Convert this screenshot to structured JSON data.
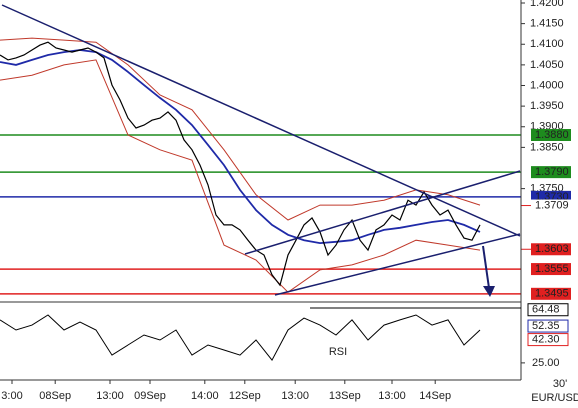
{
  "chart_data": {
    "type": "line",
    "symbol": "EUR/USD",
    "timeframe": "30'",
    "xlim": [
      0,
      65
    ],
    "xticks": [
      {
        "value": 1.5,
        "label": "3:00"
      },
      {
        "value": 6.9,
        "label": "08Sep"
      },
      {
        "value": 13.75,
        "label": "13:00"
      },
      {
        "value": 18.75,
        "label": "09Sep"
      },
      {
        "value": 25.6,
        "label": "14:00"
      },
      {
        "value": 30.6,
        "label": "12Sep"
      },
      {
        "value": 36.9,
        "label": "13:00"
      },
      {
        "value": 43.1,
        "label": "13Sep"
      },
      {
        "value": 49,
        "label": "13:00"
      },
      {
        "value": 54.4,
        "label": "14Sep"
      }
    ],
    "ylim": [
      1.348,
      1.42
    ],
    "yticks": [
      {
        "value": 1.42,
        "label": "1.4200"
      },
      {
        "value": 1.415,
        "label": "1.4150"
      },
      {
        "value": 1.41,
        "label": "1.4100"
      },
      {
        "value": 1.405,
        "label": "1.4050"
      },
      {
        "value": 1.4,
        "label": "1.4000"
      },
      {
        "value": 1.395,
        "label": "1.3950"
      },
      {
        "value": 1.39,
        "label": "1.3900"
      },
      {
        "value": 1.385,
        "label": "1.3850"
      },
      {
        "value": 1.375,
        "label": "1.3750"
      }
    ],
    "levels": [
      {
        "value": 1.388,
        "label": "1.3880",
        "color": "#1e8c1e",
        "line": true
      },
      {
        "value": 1.379,
        "label": "1.3790",
        "color": "#1e8c1e",
        "line": true
      },
      {
        "value": 1.373,
        "label": "1.3730",
        "color": "#1f2aa8",
        "line": true
      },
      {
        "value": 1.3709,
        "label": "1.3709",
        "color": "#e02020",
        "line": false
      },
      {
        "value": 1.3603,
        "label": "1.3603",
        "color": "#e02020",
        "line": false
      },
      {
        "value": 1.3555,
        "label": "1.3555",
        "color": "#e02020",
        "line": true
      },
      {
        "value": 1.3495,
        "label": "1.3495",
        "color": "#e02020",
        "line": true
      }
    ],
    "price": {
      "color": "#000000",
      "x": [
        0,
        1,
        2,
        3,
        4,
        5,
        6,
        7,
        8,
        9,
        10,
        11,
        12,
        13,
        14,
        15,
        16,
        17,
        18,
        19,
        20,
        21,
        22,
        23,
        24,
        25,
        26,
        27,
        28,
        29,
        30,
        31,
        32,
        33,
        34,
        35,
        36,
        37,
        38,
        39,
        40,
        41,
        42,
        43,
        44,
        45,
        46,
        47,
        48,
        49,
        50,
        51,
        52,
        53,
        54,
        55,
        56,
        57,
        58,
        59,
        60
      ],
      "values": [
        1.4074,
        1.4062,
        1.4067,
        1.4074,
        1.4086,
        1.4098,
        1.4105,
        1.4091,
        1.4086,
        1.4081,
        1.4086,
        1.4091,
        1.4081,
        1.4067,
        1.4001,
        1.3965,
        1.3921,
        1.3897,
        1.3904,
        1.3916,
        1.3921,
        1.3936,
        1.3916,
        1.3868,
        1.3844,
        1.3807,
        1.3759,
        1.3686,
        1.3662,
        1.3662,
        1.365,
        1.3625,
        1.3601,
        1.3589,
        1.3541,
        1.3516,
        1.3589,
        1.3625,
        1.3662,
        1.3679,
        1.3645,
        1.3589,
        1.3613,
        1.365,
        1.3674,
        1.3625,
        1.3601,
        1.365,
        1.3662,
        1.3686,
        1.3674,
        1.3722,
        1.371,
        1.3742,
        1.371,
        1.3686,
        1.3698,
        1.3662,
        1.363,
        1.3625,
        1.3662
      ]
    },
    "moving_average": {
      "color": "#1f2aa8",
      "x": [
        0,
        2,
        4,
        6,
        8,
        10,
        12,
        14,
        16,
        18,
        20,
        22,
        24,
        26,
        28,
        30,
        32,
        34,
        36,
        38,
        40,
        42,
        44,
        46,
        48,
        50,
        52,
        54,
        56,
        58,
        60
      ],
      "values": [
        1.4057,
        1.405,
        1.4062,
        1.4074,
        1.4081,
        1.4086,
        1.4081,
        1.4062,
        1.4033,
        1.4001,
        1.397,
        1.3941,
        1.3904,
        1.3856,
        1.3807,
        1.3747,
        1.3698,
        1.3662,
        1.3638,
        1.3625,
        1.3618,
        1.3621,
        1.3625,
        1.3638,
        1.365,
        1.3655,
        1.3662,
        1.3669,
        1.3674,
        1.3662,
        1.3645
      ]
    },
    "bollinger_upper": {
      "color": "#c0392b",
      "x": [
        0,
        4,
        8,
        12,
        16,
        20,
        24,
        28,
        32,
        36,
        40,
        44,
        48,
        52,
        56,
        60
      ],
      "values": [
        1.411,
        1.4115,
        1.411,
        1.4105,
        1.405,
        1.3977,
        1.3941,
        1.3844,
        1.3735,
        1.3674,
        1.371,
        1.371,
        1.3722,
        1.3747,
        1.3735,
        1.371
      ]
    },
    "bollinger_lower": {
      "color": "#c0392b",
      "x": [
        0,
        4,
        8,
        12,
        16,
        20,
        24,
        28,
        32,
        36,
        40,
        44,
        48,
        52,
        56,
        60
      ],
      "values": [
        1.4013,
        1.4025,
        1.405,
        1.4062,
        1.388,
        1.3844,
        1.3819,
        1.3613,
        1.3577,
        1.3499,
        1.3553,
        1.3565,
        1.3589,
        1.3625,
        1.3613,
        1.3601
      ]
    },
    "rsi": {
      "title": "RSI",
      "color": "#000000",
      "ylim": [
        16,
        68
      ],
      "yticks": [
        {
          "value": 25,
          "label": "25.00"
        }
      ],
      "markers": [
        {
          "value": 64.48,
          "label": "64.48",
          "color": "#000000"
        },
        {
          "value": 52.35,
          "label": "52.35",
          "color": "#1f2aa8"
        },
        {
          "value": 42.3,
          "label": "42.30",
          "color": "#e02020"
        }
      ],
      "x": [
        0,
        2,
        4,
        6,
        8,
        10,
        12,
        14,
        16,
        18,
        20,
        22,
        24,
        26,
        28,
        30,
        32,
        34,
        36,
        38,
        40,
        42,
        44,
        46,
        48,
        50,
        52,
        54,
        56,
        58,
        60
      ],
      "values": [
        56.9,
        49.4,
        53.1,
        60.6,
        49.4,
        55.4,
        49.4,
        30.8,
        38.3,
        45.7,
        42.0,
        49.4,
        30.8,
        38.3,
        34.6,
        30.8,
        42.0,
        27.1,
        49.4,
        58.3,
        53.1,
        45.7,
        56.9,
        42.0,
        53.1,
        56.9,
        60.6,
        53.1,
        56.9,
        38.3,
        49.4
      ]
    }
  }
}
